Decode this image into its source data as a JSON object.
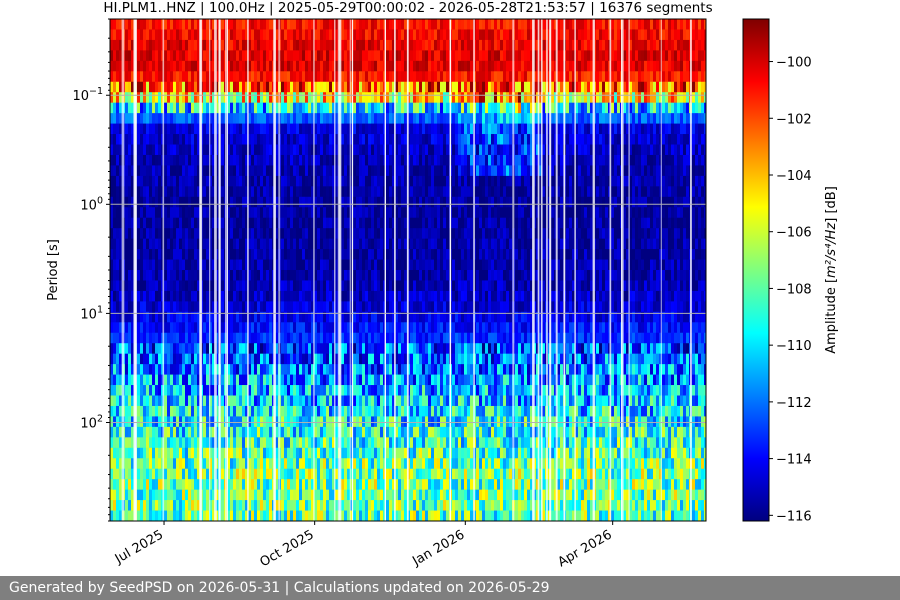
{
  "chart_data": {
    "type": "heatmap",
    "title": "HI.PLM1..HNZ | 100.0Hz | 2025-05-29T00:00:02 - 2026-05-28T21:53:57 | 16376 segments",
    "xlabel": "",
    "ylabel": "Period [s]",
    "x_range": [
      "2025-05-29",
      "2026-05-28"
    ],
    "x_ticks": [
      {
        "date": "2025-07-01",
        "label": "Jul 2025"
      },
      {
        "date": "2025-10-01",
        "label": "Oct 2025"
      },
      {
        "date": "2026-01-01",
        "label": "Jan 2026"
      },
      {
        "date": "2026-04-01",
        "label": "Apr 2026"
      }
    ],
    "y_scale": "log",
    "y_inverted": true,
    "y_range": [
      0.02,
      800
    ],
    "y_ticks": [
      {
        "value": 0.1,
        "base": "10",
        "exp": "−1"
      },
      {
        "value": 1,
        "base": "10",
        "exp": "0"
      },
      {
        "value": 10,
        "base": "10",
        "exp": "1"
      },
      {
        "value": 100,
        "base": "10",
        "exp": "2"
      }
    ],
    "grid": true,
    "colormap": "jet",
    "colorbar": {
      "label_prefix": "Amplitude [",
      "label_math": "m²/s⁴/Hz",
      "label_suffix": "] [dB]",
      "range": [
        -116.2,
        -98.5
      ],
      "ticks": [
        -100,
        -102,
        -104,
        -106,
        -108,
        -110,
        -112,
        -114,
        -116
      ]
    },
    "profile": [
      {
        "period": 0.02,
        "db": -101
      },
      {
        "period": 0.05,
        "db": -100
      },
      {
        "period": 0.08,
        "db": -101.5
      },
      {
        "period": 0.1,
        "db": -104
      },
      {
        "period": 0.13,
        "db": -110
      },
      {
        "period": 0.2,
        "db": -114.5
      },
      {
        "period": 0.5,
        "db": -115.5
      },
      {
        "period": 1,
        "db": -115.8
      },
      {
        "period": 5,
        "db": -115.5
      },
      {
        "period": 10,
        "db": -114.5
      },
      {
        "period": 30,
        "db": -112
      },
      {
        "period": 100,
        "db": -109.5
      },
      {
        "period": 300,
        "db": -107.5
      },
      {
        "period": 800,
        "db": -108
      }
    ]
  },
  "footer": {
    "text": "Generated by SeedPSD on 2026-05-31 | Calculations updated on 2026-05-29"
  }
}
